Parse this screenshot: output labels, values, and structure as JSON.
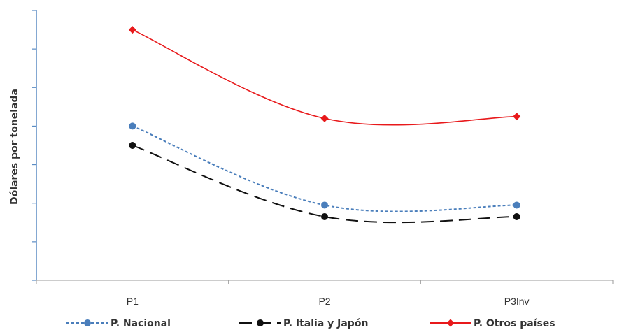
{
  "chart_data": {
    "type": "line",
    "title": "",
    "xlabel": "",
    "ylabel": "Dólares por tonelada",
    "categories": [
      "P1",
      "P2",
      "P3Inv"
    ],
    "ylim": [
      0,
      7
    ],
    "y_tick_count": 8,
    "y_tick_labels_shown": false,
    "grid": false,
    "legend_position": "bottom",
    "smooth": true,
    "series": [
      {
        "name": "P. Nacional",
        "values": [
          4.0,
          1.95,
          1.95
        ],
        "color": "#4a7ebb",
        "dash": "4,3",
        "marker": "circle"
      },
      {
        "name": "P. Italia y Japón",
        "values": [
          3.5,
          1.65,
          1.65
        ],
        "color": "#111111",
        "dash": "18,9",
        "marker": "circle"
      },
      {
        "name": "P. Otros países",
        "values": [
          6.5,
          4.2,
          4.25
        ],
        "color": "#e8191b",
        "dash": "",
        "marker": "diamond"
      }
    ]
  }
}
